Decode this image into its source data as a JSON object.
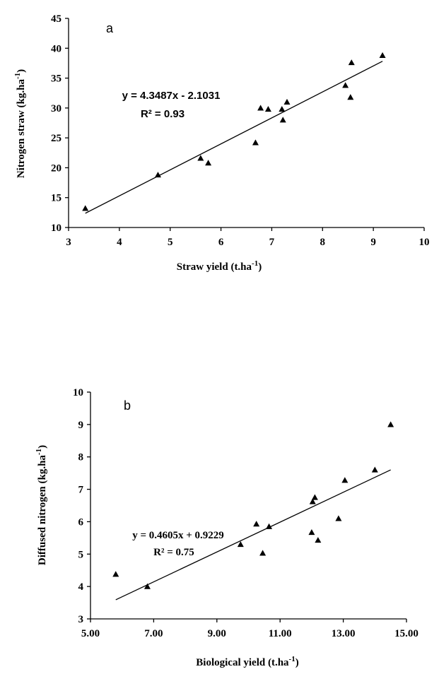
{
  "chart_data": [
    {
      "type": "scatter",
      "title": "a",
      "annotations": [
        "y = 4.3487x - 2.1031",
        "R² = 0.93"
      ],
      "xlabel": [
        "Straw yield (t.ha",
        "-1",
        ")"
      ],
      "ylabel": [
        "Nitrogen straw  (kg.ha",
        "-1",
        ")"
      ],
      "color": "#000000",
      "xlim": [
        3,
        10
      ],
      "xticks": [
        3,
        4,
        5,
        6,
        7,
        8,
        9,
        10
      ],
      "ylim": [
        10,
        45
      ],
      "yticks": [
        10,
        15,
        20,
        25,
        30,
        35,
        40,
        45
      ],
      "x": [
        3.33,
        4.76,
        5.6,
        5.75,
        6.68,
        6.78,
        6.93,
        7.2,
        7.22,
        7.3,
        8.45,
        8.55,
        8.57,
        9.18
      ],
      "values": [
        13.2,
        18.8,
        21.6,
        20.8,
        24.2,
        30.0,
        29.8,
        29.8,
        28.0,
        31.0,
        33.8,
        31.8,
        37.6,
        38.8
      ],
      "trendline": {
        "x": [
          3.33,
          9.18
        ],
        "y": [
          12.38,
          37.82
        ]
      }
    },
    {
      "type": "scatter",
      "title": "b",
      "annotations": [
        "y = 0.4605x + 0.9229",
        "R² = 0.75"
      ],
      "xlabel": [
        "Biological yield (t.ha",
        "-1",
        ")"
      ],
      "ylabel": [
        "Diffused nitrogen (kg.ha",
        "-1",
        ")"
      ],
      "color": "#000000",
      "xlim": [
        5,
        15
      ],
      "xticks": [
        {
          "value": 5,
          "label": "5.00"
        },
        {
          "value": 7,
          "label": "7.00"
        },
        {
          "value": 9,
          "label": "9.00"
        },
        {
          "value": 11,
          "label": "11.00"
        },
        {
          "value": 13,
          "label": "13.00"
        },
        {
          "value": 15,
          "label": "15.00"
        }
      ],
      "ylim": [
        3,
        10
      ],
      "yticks": [
        3,
        4,
        5,
        6,
        7,
        8,
        9,
        10
      ],
      "x": [
        5.8,
        6.8,
        9.75,
        10.25,
        10.45,
        10.65,
        12.0,
        12.03,
        12.1,
        12.2,
        12.85,
        13.05,
        14.0,
        14.5
      ],
      "values": [
        4.38,
        4.0,
        5.3,
        5.93,
        5.03,
        5.85,
        5.67,
        6.62,
        6.75,
        5.43,
        6.1,
        7.28,
        7.6,
        9.0
      ],
      "trendline": {
        "x": [
          5.8,
          14.5
        ],
        "y": [
          3.59,
          7.6
        ]
      }
    }
  ]
}
